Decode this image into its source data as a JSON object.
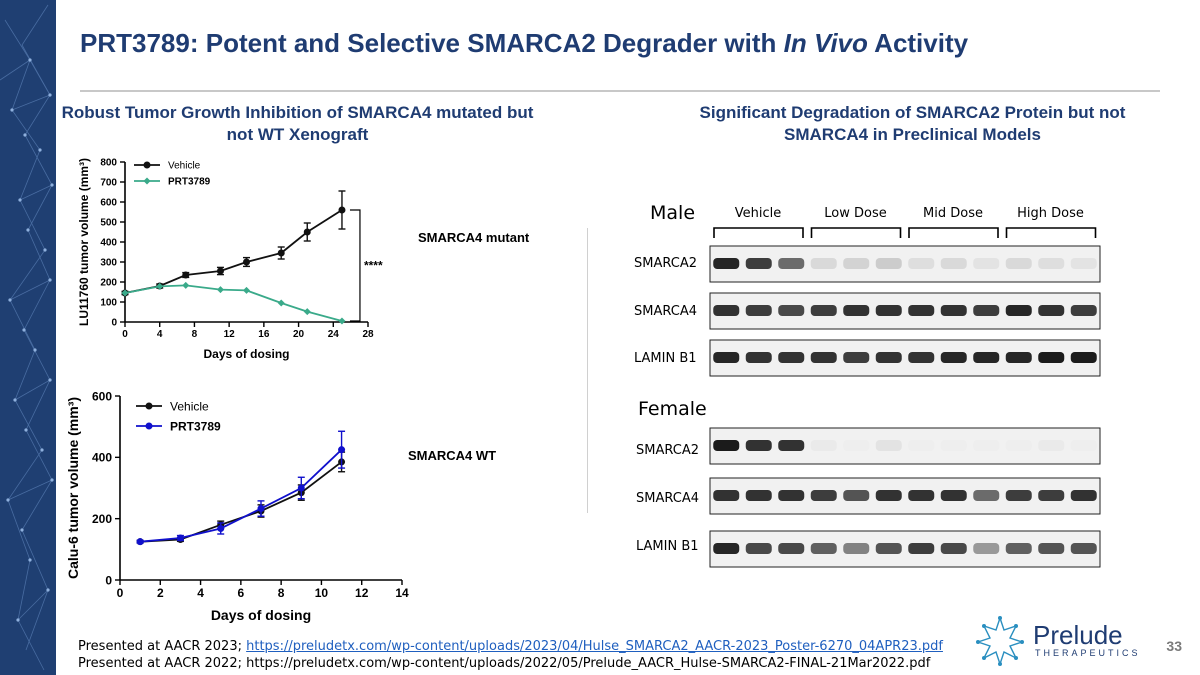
{
  "page": {
    "title_main": "PRT3789: Potent and Selective SMARCA2 Degrader with ",
    "title_italic": "In Vivo",
    "title_end": " Activity",
    "left_heading": "Robust Tumor Growth Inhibition of SMARCA4 mutated but not WT Xenograft",
    "right_heading": "Significant Degradation of SMARCA2 Protein but not SMARCA4 in Preclinical Models",
    "page_number": "33"
  },
  "footer": {
    "line1_prefix": "Presented at AACR 2023; ",
    "line1_link": "https://preludetx.com/wp-content/uploads/2023/04/Hulse_SMARCA2_AACR-2023_Poster-6270_04APR23.pdf",
    "line2": "Presented at AACR 2022; https://preludetx.com/wp-content/uploads/2022/05/Prelude_AACR_Hulse-SMARCA2-FINAL-21Mar2022.pdf"
  },
  "logo": {
    "name": "Prelude",
    "sub": "THERAPEUTICS"
  },
  "western_blot": {
    "male_label": "Male",
    "female_label": "Female",
    "dose_groups": [
      "Vehicle",
      "Low Dose",
      "Mid Dose",
      "High Dose"
    ],
    "protein_labels": [
      "SMARCA2",
      "SMARCA4",
      "LAMIN B1"
    ],
    "male_band_intensity": {
      "SMARCA2": [
        0.9,
        0.8,
        0.6,
        0.12,
        0.15,
        0.18,
        0.1,
        0.12,
        0.08,
        0.12,
        0.1,
        0.08
      ],
      "SMARCA4": [
        0.85,
        0.8,
        0.75,
        0.8,
        0.85,
        0.85,
        0.85,
        0.85,
        0.8,
        0.9,
        0.85,
        0.8
      ],
      "LAMIN B1": [
        0.9,
        0.85,
        0.85,
        0.85,
        0.8,
        0.85,
        0.85,
        0.9,
        0.9,
        0.9,
        0.95,
        0.95
      ]
    },
    "female_band_intensity": {
      "SMARCA2": [
        0.95,
        0.85,
        0.85,
        0.05,
        0.03,
        0.08,
        0.03,
        0.03,
        0.03,
        0.03,
        0.05,
        0.03
      ],
      "SMARCA4": [
        0.85,
        0.85,
        0.85,
        0.8,
        0.7,
        0.85,
        0.85,
        0.85,
        0.6,
        0.8,
        0.8,
        0.85
      ],
      "LAMIN B1": [
        0.9,
        0.75,
        0.75,
        0.65,
        0.5,
        0.7,
        0.8,
        0.75,
        0.4,
        0.65,
        0.7,
        0.7
      ]
    }
  },
  "chart_data": [
    {
      "type": "line",
      "xlabel": "Days of dosing",
      "ylabel": "LU11760 tumor volume (mm³)",
      "xlim": [
        0,
        28
      ],
      "ylim": [
        0,
        800
      ],
      "xticks": [
        0,
        4,
        8,
        12,
        16,
        20,
        24,
        28
      ],
      "yticks": [
        0,
        100,
        200,
        300,
        400,
        500,
        600,
        700,
        800
      ],
      "annotation": "SMARCA4 mutant",
      "significance": "****",
      "legend_position": "top-left",
      "series": [
        {
          "name": "Vehicle",
          "color": "#111111",
          "marker": "circle",
          "x": [
            0,
            4,
            7,
            11,
            14,
            18,
            21,
            25
          ],
          "y": [
            145,
            180,
            235,
            255,
            300,
            345,
            450,
            560
          ],
          "err": [
            8,
            10,
            12,
            18,
            22,
            30,
            45,
            95
          ]
        },
        {
          "name": "PRT3789",
          "color": "#3aaa8a",
          "marker": "diamond",
          "x": [
            0,
            4,
            7,
            11,
            14,
            18,
            21,
            25
          ],
          "y": [
            145,
            178,
            183,
            162,
            158,
            95,
            52,
            5
          ],
          "err": [
            0,
            0,
            0,
            0,
            0,
            0,
            0,
            0
          ]
        }
      ]
    },
    {
      "type": "line",
      "xlabel": "Days of dosing",
      "ylabel": "Calu-6 tumor volume (mm³)",
      "xlim": [
        0,
        14
      ],
      "ylim": [
        0,
        600
      ],
      "xticks": [
        0,
        2,
        4,
        6,
        8,
        10,
        12,
        14
      ],
      "yticks": [
        0,
        200,
        400,
        600
      ],
      "annotation": "SMARCA4 WT",
      "legend_position": "top-left",
      "series": [
        {
          "name": "Vehicle",
          "color": "#111111",
          "marker": "circle",
          "x": [
            1,
            3,
            5,
            7,
            9,
            11
          ],
          "y": [
            125,
            132,
            180,
            225,
            285,
            385
          ],
          "err": [
            4,
            6,
            12,
            20,
            25,
            32
          ]
        },
        {
          "name": "PRT3789",
          "color": "#1010cc",
          "marker": "circle",
          "x": [
            1,
            3,
            5,
            7,
            9,
            11
          ],
          "y": [
            125,
            137,
            168,
            233,
            300,
            425
          ],
          "err": [
            4,
            8,
            18,
            25,
            35,
            60
          ]
        }
      ]
    }
  ]
}
